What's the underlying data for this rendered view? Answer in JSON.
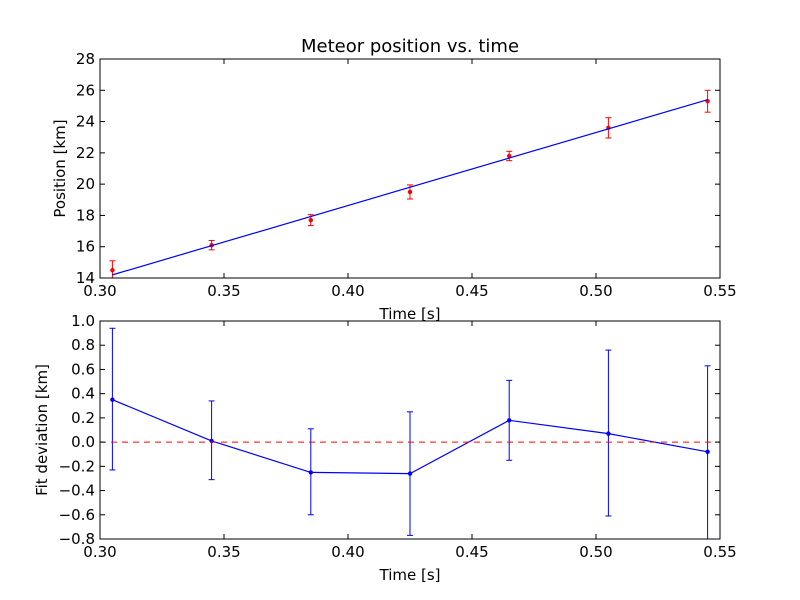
{
  "colors": {
    "measurement_points": "#ff0000",
    "fit_line": "#0000ff",
    "residual_series": "#0000ff",
    "zero_reference": "#ff0000",
    "axes": "#000000",
    "background": "#ffffff"
  },
  "chart_data": [
    {
      "type": "scatter",
      "title": "Meteor position vs. time",
      "xlabel": "Time [s]",
      "ylabel": "Position [km]",
      "xlim": [
        0.3,
        0.55
      ],
      "ylim": [
        14,
        28
      ],
      "xticks": [
        0.3,
        0.35,
        0.4,
        0.45,
        0.5,
        0.55
      ],
      "xtick_labels": [
        "0.30",
        "0.35",
        "0.40",
        "0.45",
        "0.50",
        "0.55"
      ],
      "yticks": [
        14,
        16,
        18,
        20,
        22,
        24,
        26,
        28
      ],
      "ytick_labels": [
        "14",
        "16",
        "18",
        "20",
        "22",
        "24",
        "26",
        "28"
      ],
      "grid": false,
      "series": [
        {
          "kind": "errorbar",
          "color": "#ff0000",
          "x": [
            0.305,
            0.345,
            0.385,
            0.425,
            0.465,
            0.505,
            0.545
          ],
          "y": [
            14.5,
            16.1,
            17.7,
            19.5,
            21.8,
            23.6,
            25.3
          ],
          "yerr": [
            0.6,
            0.3,
            0.35,
            0.45,
            0.3,
            0.65,
            0.7
          ]
        },
        {
          "kind": "line",
          "color": "#0000ff",
          "x": [
            0.305,
            0.545
          ],
          "y": [
            14.2,
            25.4
          ]
        }
      ]
    },
    {
      "type": "line",
      "xlabel": "Time [s]",
      "ylabel": "Fit deviation [km]",
      "xlim": [
        0.3,
        0.55
      ],
      "ylim": [
        -0.8,
        1.0
      ],
      "xticks": [
        0.3,
        0.35,
        0.4,
        0.45,
        0.5,
        0.55
      ],
      "xtick_labels": [
        "0.30",
        "0.35",
        "0.40",
        "0.45",
        "0.50",
        "0.55"
      ],
      "yticks": [
        -0.8,
        -0.6,
        -0.4,
        -0.2,
        0.0,
        0.2,
        0.4,
        0.6,
        0.8,
        1.0
      ],
      "ytick_labels": [
        "−0.8",
        "−0.6",
        "−0.4",
        "−0.2",
        "0.0",
        "0.2",
        "0.4",
        "0.6",
        "0.8",
        "1.0"
      ],
      "grid": false,
      "series": [
        {
          "kind": "errorbar-line",
          "color": "#0000ff",
          "x": [
            0.305,
            0.345,
            0.385,
            0.425,
            0.465,
            0.505,
            0.545
          ],
          "y": [
            0.35,
            0.01,
            -0.25,
            -0.26,
            0.18,
            0.07,
            -0.08
          ],
          "yerr_low": [
            0.58,
            0.32,
            0.35,
            0.51,
            0.33,
            0.68,
            0.72
          ],
          "yerr_high": [
            0.59,
            0.33,
            0.36,
            0.51,
            0.33,
            0.69,
            0.71
          ]
        },
        {
          "kind": "hline",
          "style": "dashed",
          "color": "#ff0000",
          "y": 0.0
        }
      ]
    }
  ]
}
